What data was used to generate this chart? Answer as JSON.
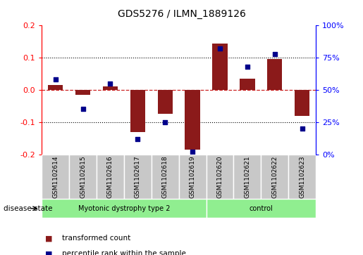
{
  "title": "GDS5276 / ILMN_1889126",
  "samples": [
    "GSM1102614",
    "GSM1102615",
    "GSM1102616",
    "GSM1102617",
    "GSM1102618",
    "GSM1102619",
    "GSM1102620",
    "GSM1102621",
    "GSM1102622",
    "GSM1102623"
  ],
  "bar_values": [
    0.015,
    -0.015,
    0.01,
    -0.13,
    -0.075,
    -0.185,
    0.145,
    0.035,
    0.095,
    -0.08
  ],
  "scatter_pct": [
    58,
    35,
    55,
    12,
    25,
    2,
    82,
    68,
    78,
    20
  ],
  "bar_color": "#8B1A1A",
  "scatter_color": "#00008B",
  "ylim": [
    -0.2,
    0.2
  ],
  "y2lim": [
    0,
    100
  ],
  "yticks": [
    -0.2,
    -0.1,
    0.0,
    0.1,
    0.2
  ],
  "y2ticks": [
    0,
    25,
    50,
    75,
    100
  ],
  "y2ticklabels": [
    "0%",
    "25%",
    "50%",
    "75%",
    "100%"
  ],
  "legend_bar_label": "transformed count",
  "legend_scatter_label": "percentile rank within the sample",
  "zero_line_color": "#CC2222",
  "bg_sample_boxes": "#C8C8C8",
  "group1_label": "Myotonic dystrophy type 2",
  "group2_label": "control",
  "group_color": "#90EE90",
  "disease_state_label": "disease state",
  "bar_width": 0.55
}
